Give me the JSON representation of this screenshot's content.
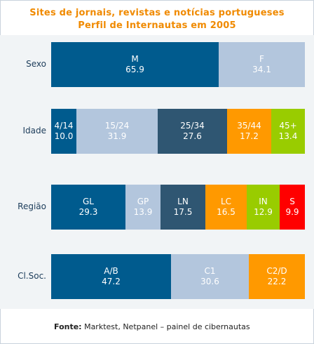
{
  "chart_data": {
    "type": "bar",
    "stacked": true,
    "orientation": "horizontal",
    "title": "Sites de jornais, revistas e notícias portugueses",
    "subtitle": "Perfil de Internautas em 2005",
    "xlim": [
      0,
      100
    ],
    "grid": false,
    "rows": [
      {
        "label": "Sexo",
        "segments": [
          {
            "name": "M",
            "value": 65.9,
            "display": "65.9",
            "color": "#005b8e"
          },
          {
            "name": "F",
            "value": 34.1,
            "display": "34.1",
            "color": "#b3c6dd"
          }
        ]
      },
      {
        "label": "Idade",
        "segments": [
          {
            "name": "4/14",
            "value": 10.0,
            "display": "10.0",
            "color": "#005b8e"
          },
          {
            "name": "15/24",
            "value": 31.9,
            "display": "31.9",
            "color": "#b3c6dd"
          },
          {
            "name": "25/34",
            "value": 27.6,
            "display": "27.6",
            "color": "#2f5672"
          },
          {
            "name": "35/44",
            "value": 17.2,
            "display": "17.2",
            "color": "#ff9900"
          },
          {
            "name": "45+",
            "value": 13.4,
            "display": "13.4",
            "color": "#99cc00"
          }
        ]
      },
      {
        "label": "Região",
        "segments": [
          {
            "name": "GL",
            "value": 29.3,
            "display": "29.3",
            "color": "#005b8e"
          },
          {
            "name": "GP",
            "value": 13.9,
            "display": "13.9",
            "color": "#b3c6dd"
          },
          {
            "name": "LN",
            "value": 17.5,
            "display": "17.5",
            "color": "#2f5672"
          },
          {
            "name": "LC",
            "value": 16.5,
            "display": "16.5",
            "color": "#ff9900"
          },
          {
            "name": "IN",
            "value": 12.9,
            "display": "12.9",
            "color": "#99cc00"
          },
          {
            "name": "S",
            "value": 9.9,
            "display": "9.9",
            "color": "#ff0000"
          }
        ]
      },
      {
        "label": "Cl.Soc.",
        "segments": [
          {
            "name": "A/B",
            "value": 47.2,
            "display": "47.2",
            "color": "#005b8e"
          },
          {
            "name": "C1",
            "value": 30.6,
            "display": "30.6",
            "color": "#b3c6dd"
          },
          {
            "name": "C2/D",
            "value": 22.2,
            "display": "22.2",
            "color": "#ff9900"
          }
        ]
      }
    ]
  },
  "source": {
    "label": "Fonte:",
    "text": " Marktest, Netpanel – painel de cibernautas"
  }
}
